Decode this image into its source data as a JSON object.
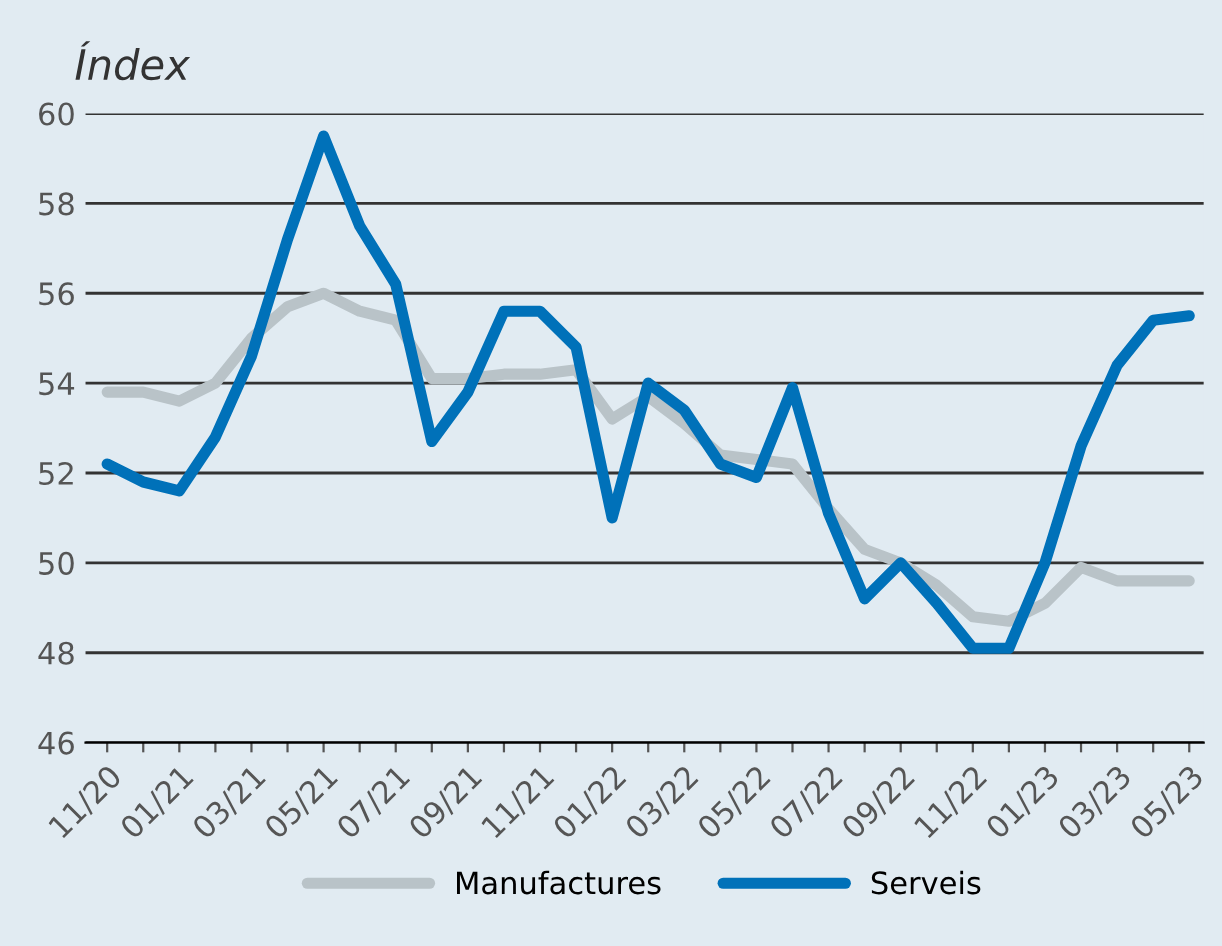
{
  "chart_data": {
    "type": "line",
    "ylabel": "Índex",
    "categories": [
      "11/20",
      null,
      "01/21",
      null,
      "03/21",
      null,
      "05/21",
      null,
      "07/21",
      null,
      "09/21",
      null,
      "11/21",
      null,
      "01/22",
      null,
      "03/22",
      null,
      "05/22",
      null,
      "07/22",
      null,
      "09/22",
      null,
      "11/22",
      null,
      "01/23",
      null,
      "03/23",
      null,
      "05/23"
    ],
    "series": [
      {
        "name": "Manufactures",
        "color": "#b9c3c8",
        "values": [
          53.8,
          53.8,
          53.6,
          54.0,
          55.0,
          55.7,
          56.0,
          55.6,
          55.4,
          54.1,
          54.1,
          54.2,
          54.2,
          54.3,
          53.2,
          53.7,
          53.1,
          52.4,
          52.3,
          52.2,
          51.2,
          50.3,
          50.0,
          49.5,
          48.8,
          48.7,
          49.1,
          49.9,
          49.6,
          49.6,
          49.6
        ]
      },
      {
        "name": "Serveis",
        "color": "#0071b9",
        "values": [
          52.2,
          51.8,
          51.6,
          52.8,
          54.6,
          57.2,
          59.5,
          57.5,
          56.2,
          52.7,
          53.8,
          55.6,
          55.6,
          54.8,
          51.0,
          54.0,
          53.4,
          52.2,
          51.9,
          53.9,
          51.1,
          49.2,
          50.0,
          49.1,
          48.1,
          48.1,
          50.0,
          52.6,
          54.4,
          55.4,
          55.5
        ]
      }
    ],
    "ylim": [
      46,
      60
    ],
    "yticks": [
      46,
      48,
      50,
      52,
      54,
      56,
      58,
      60
    ],
    "grid": "y",
    "legend": "bottom",
    "line_style": "solid"
  }
}
